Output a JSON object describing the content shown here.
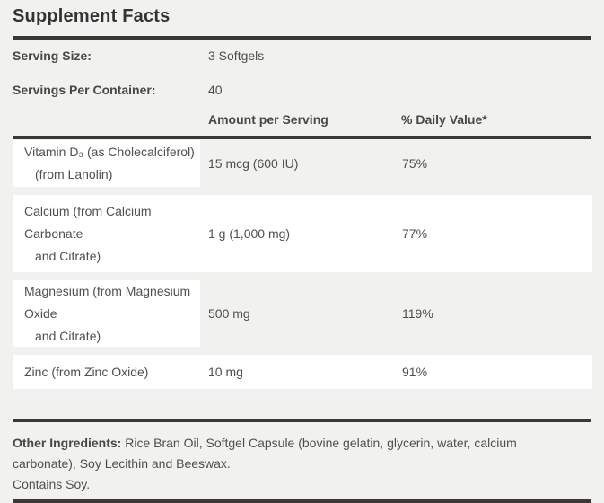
{
  "title": "Supplement Facts",
  "serving": {
    "size_label": "Serving Size:",
    "size_value": "3 Softgels",
    "container_label": "Servings Per Container:",
    "container_value": "40"
  },
  "columns": {
    "amount": "Amount per Serving",
    "daily_value": "% Daily Value*"
  },
  "rows": [
    {
      "name_line1": "Vitamin D₃ (as Cholecalciferol)",
      "name_line2": "(from Lanolin)",
      "amount": "15 mcg (600 IU)",
      "daily_value": "75%"
    },
    {
      "name_line1": "Calcium (from Calcium",
      "name_line2": "Carbonate",
      "name_line3": "and Citrate)",
      "amount": "1 g (1,000 mg)",
      "daily_value": "77%"
    },
    {
      "name_line1": "Magnesium (from Magnesium",
      "name_line2": "Oxide",
      "name_line3": "and Citrate)",
      "amount": "500 mg",
      "daily_value": "119%"
    },
    {
      "name_line1": "Zinc (from Zinc Oxide)",
      "amount": "10 mg",
      "daily_value": "91%"
    }
  ],
  "footer": {
    "other_ingredients_label": "Other Ingredients:",
    "other_ingredients_text": " Rice Bran Oil, Softgel Capsule (bovine gelatin, glycerin, water, calcium carbonate), Soy Lecithin and Beeswax.",
    "contains": "Contains Soy."
  },
  "colors": {
    "page_background": "#f1f1f0",
    "row_background": "#ffffff",
    "rule": "#3a3734",
    "title_text": "#333333",
    "body_text": "#524e4e"
  }
}
